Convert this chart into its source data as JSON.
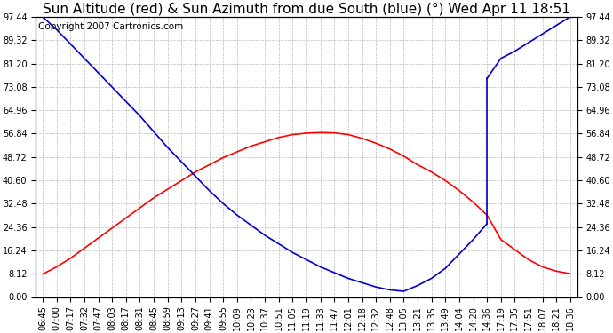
{
  "title": "Sun Altitude (red) & Sun Azimuth from due South (blue) (°) Wed Apr 11 18:51",
  "copyright": "Copyright 2007 Cartronics.com",
  "y_ticks": [
    0.0,
    8.12,
    16.24,
    24.36,
    32.48,
    40.6,
    48.72,
    56.84,
    64.96,
    73.08,
    81.2,
    89.32,
    97.44
  ],
  "ylim": [
    0.0,
    97.44
  ],
  "x_labels": [
    "06:45",
    "07:00",
    "07:17",
    "07:32",
    "07:47",
    "08:03",
    "08:17",
    "08:31",
    "08:45",
    "08:59",
    "09:13",
    "09:27",
    "09:41",
    "09:55",
    "10:09",
    "10:23",
    "10:37",
    "10:51",
    "11:05",
    "11:19",
    "11:33",
    "11:47",
    "12:01",
    "12:18",
    "12:32",
    "12:48",
    "13:05",
    "13:21",
    "13:35",
    "13:49",
    "14:04",
    "14:20",
    "14:36",
    "17:19",
    "17:35",
    "17:51",
    "18:07",
    "18:21",
    "18:36"
  ],
  "background_color": "#ffffff",
  "plot_bg_color": "#ffffff",
  "grid_color": "#bbbbbb",
  "line_color_red": "#ff0000",
  "line_color_blue": "#0000cc",
  "title_fontsize": 11,
  "copyright_fontsize": 7.5,
  "tick_fontsize": 7,
  "alt_data_x": [
    405,
    420,
    437,
    452,
    467,
    483,
    497,
    511,
    525,
    539,
    553,
    567,
    581,
    595,
    609,
    623,
    637,
    651,
    665,
    679,
    693,
    707,
    721,
    738,
    752,
    768,
    785,
    801,
    815,
    829,
    844,
    860,
    876,
    1039,
    1055,
    1071,
    1087,
    1101,
    1116
  ],
  "alt_data_y": [
    8.0,
    10.5,
    13.5,
    17.0,
    20.5,
    24.0,
    27.5,
    31.0,
    34.5,
    37.5,
    40.5,
    43.5,
    46.0,
    48.5,
    50.5,
    52.5,
    54.0,
    55.5,
    56.5,
    57.0,
    57.2,
    57.1,
    56.5,
    55.2,
    53.5,
    51.5,
    49.0,
    46.0,
    43.5,
    40.5,
    37.0,
    33.0,
    28.5,
    20.0,
    16.5,
    13.0,
    10.5,
    9.0,
    8.12
  ],
  "az_seg1_x": [
    405,
    420,
    437,
    452,
    467,
    483,
    497,
    511,
    525,
    539,
    553,
    567,
    581,
    595,
    609,
    623,
    637,
    651,
    665,
    679,
    693,
    707,
    721,
    738,
    752,
    768,
    785,
    801,
    815,
    829,
    844,
    860,
    876
  ],
  "az_seg1_y": [
    97.44,
    93.0,
    88.0,
    83.0,
    78.0,
    73.0,
    68.0,
    63.0,
    57.5,
    52.0,
    47.0,
    42.0,
    37.0,
    32.5,
    28.5,
    25.0,
    21.5,
    18.5,
    15.5,
    13.0,
    10.5,
    8.5,
    6.5,
    5.0,
    3.5,
    2.5,
    2.0,
    4.0,
    6.5,
    10.0,
    15.0,
    20.0,
    25.5
  ],
  "az_jump_low": 25.5,
  "az_jump_high": 76.0,
  "az_seg2_x": [
    876,
    1039,
    1055,
    1071,
    1087,
    1101,
    1116
  ],
  "az_seg2_y": [
    76.0,
    83.0,
    85.5,
    88.5,
    91.5,
    94.5,
    97.44
  ]
}
